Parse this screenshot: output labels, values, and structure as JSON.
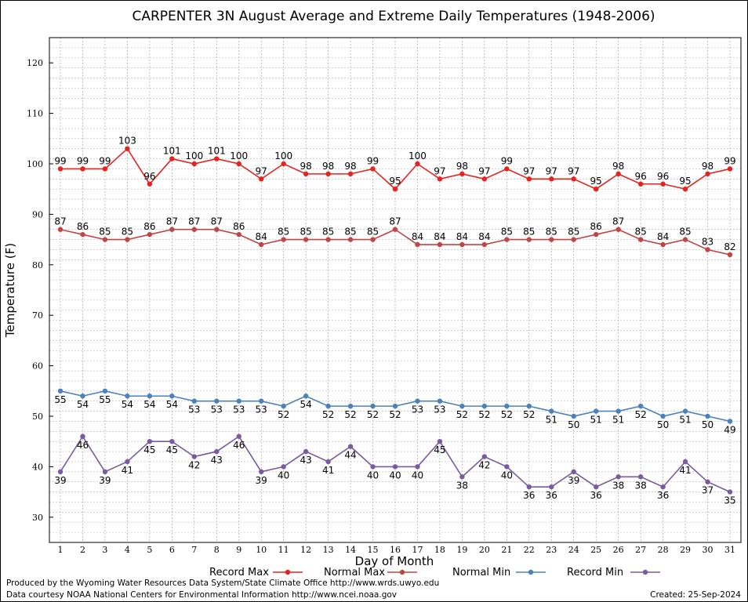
{
  "chart_data": {
    "type": "line",
    "title": "CARPENTER 3N August Average and Extreme Daily Temperatures (1948-2006)",
    "xlabel": "Day of Month",
    "ylabel": "Temperature (F)",
    "ylim": [
      25,
      125
    ],
    "y_ticks": [
      30,
      40,
      50,
      60,
      70,
      80,
      90,
      100,
      110,
      120
    ],
    "x": [
      1,
      2,
      3,
      4,
      5,
      6,
      7,
      8,
      9,
      10,
      11,
      12,
      13,
      14,
      15,
      16,
      17,
      18,
      19,
      20,
      21,
      22,
      23,
      24,
      25,
      26,
      27,
      28,
      29,
      30,
      31
    ],
    "grid": true,
    "legend_position": "bottom",
    "series": [
      {
        "name": "Record Max",
        "color": "#e8221f",
        "label_position": "above",
        "values": [
          99,
          99,
          99,
          103,
          96,
          101,
          100,
          101,
          100,
          97,
          100,
          98,
          98,
          98,
          99,
          95,
          100,
          97,
          98,
          97,
          99,
          97,
          97,
          97,
          95,
          98,
          96,
          96,
          95,
          98,
          99
        ]
      },
      {
        "name": "Normal Max",
        "color": "#c04545",
        "label_position": "above",
        "values": [
          87,
          86,
          85,
          85,
          86,
          87,
          87,
          87,
          86,
          84,
          85,
          85,
          85,
          85,
          85,
          87,
          84,
          84,
          84,
          84,
          85,
          85,
          85,
          85,
          86,
          87,
          85,
          84,
          85,
          83,
          82
        ]
      },
      {
        "name": "Normal Min",
        "color": "#4a82bd",
        "label_position": "below",
        "values": [
          55,
          54,
          55,
          54,
          54,
          54,
          53,
          53,
          53,
          53,
          52,
          54,
          52,
          52,
          52,
          52,
          53,
          53,
          52,
          52,
          52,
          52,
          51,
          50,
          51,
          51,
          52,
          50,
          51,
          50,
          49
        ]
      },
      {
        "name": "Record Min",
        "color": "#7b5aa0",
        "label_position": "below",
        "values": [
          39,
          46,
          39,
          41,
          45,
          45,
          42,
          43,
          46,
          39,
          40,
          43,
          41,
          44,
          40,
          40,
          40,
          45,
          38,
          42,
          40,
          36,
          36,
          39,
          36,
          38,
          38,
          36,
          41,
          37,
          35
        ]
      }
    ]
  },
  "footer": {
    "line1": "Produced by the Wyoming Water Resources Data System/State Climate Office http://www.wrds.uwyo.edu",
    "line2": "Data courtesy NOAA National Centers for Environmental Information http://www.ncei.noaa.gov",
    "created": "Created:  25-Sep-2024"
  }
}
